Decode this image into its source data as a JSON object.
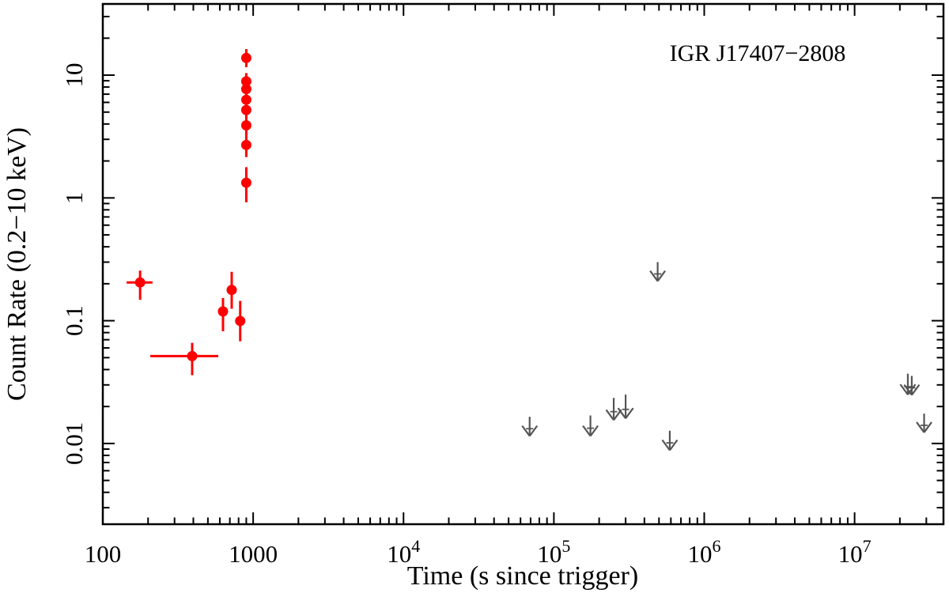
{
  "chart_data": {
    "type": "scatter",
    "title": "IGR J17407−2808",
    "xlabel": "Time (s since trigger)",
    "ylabel": "Count Rate (0.2−10 keV)",
    "xscale": "log",
    "yscale": "log",
    "xlim": [
      100,
      39000000
    ],
    "ylim": [
      0.0022,
      38
    ],
    "grid": false,
    "legend": false,
    "colors": {
      "detections": "#ff0000",
      "upper_limits": "#555555",
      "axis": "#000000",
      "background": "#ffffff"
    },
    "x_ticks": [
      {
        "value": 100,
        "label": "100"
      },
      {
        "value": 1000,
        "label": "1000"
      },
      {
        "value": 10000,
        "label": "10",
        "exp": "4"
      },
      {
        "value": 100000,
        "label": "10",
        "exp": "5"
      },
      {
        "value": 1000000,
        "label": "10",
        "exp": "6"
      },
      {
        "value": 10000000,
        "label": "10",
        "exp": "7"
      }
    ],
    "y_ticks": [
      {
        "value": 0.01,
        "label": "0.01"
      },
      {
        "value": 0.1,
        "label": "0.1"
      },
      {
        "value": 1,
        "label": "1"
      },
      {
        "value": 10,
        "label": "10"
      }
    ],
    "series": [
      {
        "name": "detections",
        "marker": "filled-circle",
        "color": "#ff0000",
        "points": [
          {
            "t": 177,
            "t_lo": 144,
            "t_hi": 214,
            "rate": 0.205,
            "rate_lo": 0.148,
            "rate_hi": 0.256
          },
          {
            "t": 393,
            "t_lo": 207,
            "t_hi": 586,
            "rate": 0.0515,
            "rate_lo": 0.036,
            "rate_hi": 0.066
          },
          {
            "t": 630,
            "rate": 0.119,
            "rate_lo": 0.082,
            "rate_hi": 0.153
          },
          {
            "t": 720,
            "rate": 0.178,
            "rate_lo": 0.125,
            "rate_hi": 0.25
          },
          {
            "t": 820,
            "rate": 0.0995,
            "rate_lo": 0.068,
            "rate_hi": 0.145
          },
          {
            "t": 900,
            "rate": 13.8,
            "rate_lo": 11.6,
            "rate_hi": 16.3
          },
          {
            "t": 900,
            "rate": 8.9,
            "rate_lo": 7.9,
            "rate_hi": 10.4
          },
          {
            "t": 900,
            "rate": 7.7,
            "rate_lo": 6.8,
            "rate_hi": 8.7
          },
          {
            "t": 900,
            "rate": 6.3,
            "rate_lo": 5.5,
            "rate_hi": 7.2
          },
          {
            "t": 900,
            "rate": 5.2,
            "rate_lo": 4.5,
            "rate_hi": 6.0
          },
          {
            "t": 900,
            "rate": 3.9,
            "rate_lo": 3.3,
            "rate_hi": 4.6
          },
          {
            "t": 900,
            "rate": 2.7,
            "rate_lo": 2.15,
            "rate_hi": 3.4
          },
          {
            "t": 900,
            "rate": 1.33,
            "rate_lo": 0.92,
            "rate_hi": 1.78
          }
        ]
      },
      {
        "name": "upper_limits",
        "marker": "down-arrow",
        "color": "#555555",
        "points": [
          {
            "t": 69000,
            "limit": 0.0165,
            "arrow_tip": 0.0115
          },
          {
            "t": 175000,
            "limit": 0.0169,
            "arrow_tip": 0.0115
          },
          {
            "t": 250000,
            "limit": 0.0235,
            "arrow_tip": 0.0155
          },
          {
            "t": 300000,
            "limit": 0.025,
            "arrow_tip": 0.016
          },
          {
            "t": 490000,
            "limit": 0.3,
            "arrow_tip": 0.21
          },
          {
            "t": 590000,
            "limit": 0.0127,
            "arrow_tip": 0.0088
          },
          {
            "t": 22600000,
            "limit": 0.037,
            "arrow_tip": 0.025
          },
          {
            "t": 24000000,
            "limit": 0.0355,
            "arrow_tip": 0.0248
          },
          {
            "t": 29000000,
            "limit": 0.0175,
            "arrow_tip": 0.0123
          }
        ]
      }
    ]
  }
}
